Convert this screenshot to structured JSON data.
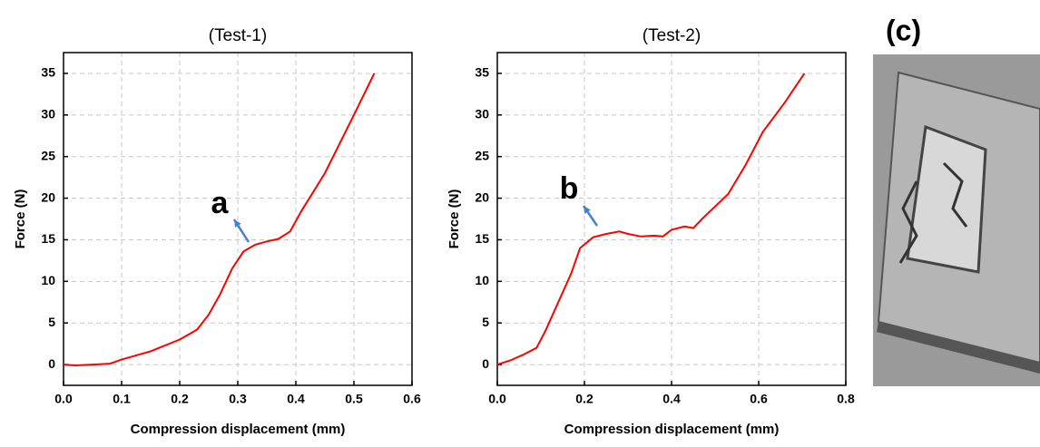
{
  "chart_data": [
    {
      "type": "line",
      "title": "(Test-1)",
      "x_label": "Compression displacement (mm)",
      "y_label": "Force (N)",
      "color": "#ff0000",
      "x": [
        0,
        0.02,
        0.05,
        0.08,
        0.1,
        0.15,
        0.2,
        0.22,
        0.23,
        0.25,
        0.27,
        0.29,
        0.31,
        0.33,
        0.35,
        0.37,
        0.39,
        0.41,
        0.45,
        0.5,
        0.535
      ],
      "values": [
        0,
        -0.1,
        0,
        0.1,
        0.6,
        1.6,
        3,
        3.8,
        4.2,
        6,
        8.5,
        11.5,
        13.6,
        14.4,
        14.8,
        15.1,
        16,
        18.5,
        23,
        30,
        35
      ],
      "xlim": [
        0,
        0.6
      ],
      "xticks": [
        {
          "value": 0,
          "label": "0.0"
        },
        0.1,
        0.2,
        0.3,
        0.4,
        0.5,
        0.6
      ],
      "ylim": [
        -2.5,
        37.5
      ],
      "yticks": [
        0,
        5,
        10,
        15,
        20,
        25,
        30,
        35
      ],
      "grid": true,
      "annotation": "a"
    },
    {
      "type": "line",
      "title": "(Test-2)",
      "x_label": "Compression displacement (mm)",
      "y_label": "Force (N)",
      "color": "#ff0000",
      "x": [
        0,
        0.03,
        0.06,
        0.09,
        0.11,
        0.14,
        0.17,
        0.19,
        0.22,
        0.25,
        0.28,
        0.3,
        0.33,
        0.36,
        0.38,
        0.4,
        0.43,
        0.45,
        0.47,
        0.5,
        0.53,
        0.57,
        0.61,
        0.66,
        0.705
      ],
      "values": [
        0,
        0.5,
        1.2,
        2,
        4,
        7.5,
        11,
        14,
        15.3,
        15.7,
        16,
        15.7,
        15.4,
        15.5,
        15.4,
        16.2,
        16.6,
        16.4,
        17.5,
        19,
        20.5,
        24,
        28,
        31.5,
        35
      ],
      "xlim": [
        0,
        0.8
      ],
      "xticks": [
        {
          "value": 0,
          "label": "0.0"
        },
        0.2,
        0.4,
        0.6,
        0.8
      ],
      "ylim": [
        -2.5,
        37.5
      ],
      "yticks": [
        0,
        5,
        10,
        15,
        20,
        25,
        30,
        35
      ],
      "grid": true,
      "annotation": "b"
    }
  ],
  "panel_label": "(c)"
}
